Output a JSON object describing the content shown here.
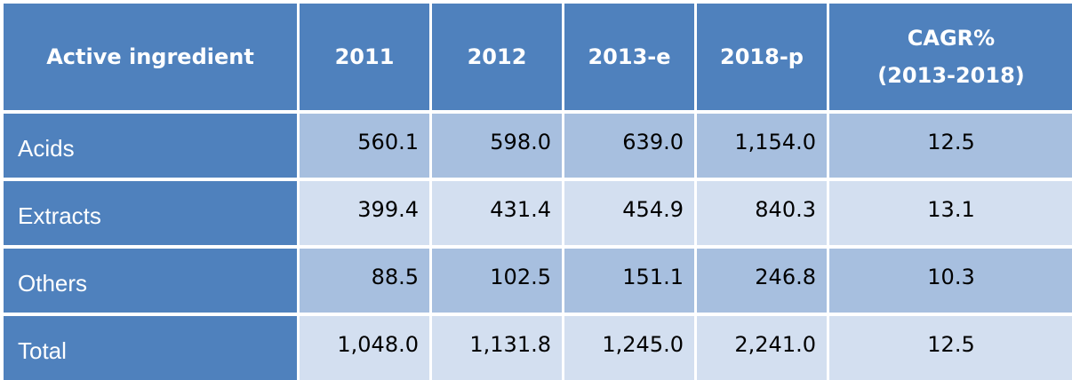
{
  "chart_data": {
    "type": "table",
    "columns": [
      "Active ingredient",
      "2011",
      "2012",
      "2013-e",
      "2018-p",
      [
        "CAGR%",
        "(2013-2018)"
      ]
    ],
    "rows": [
      {
        "label": "Acids",
        "values": [
          "560.1",
          "598.0",
          "639.0",
          "1,154.0",
          "12.5"
        ]
      },
      {
        "label": "Extracts",
        "values": [
          "399.4",
          "431.4",
          "454.9",
          "840.3",
          "13.1"
        ]
      },
      {
        "label": "Others",
        "values": [
          "88.5",
          "102.5",
          "151.1",
          "246.8",
          "10.3"
        ]
      },
      {
        "label": "Total",
        "values": [
          "1,048.0",
          "1,131.8",
          "1,245.0",
          "2,241.0",
          "12.5"
        ]
      }
    ]
  },
  "colors": {
    "header": "#4f81bd",
    "row_dark": "#a7bfdf",
    "row_light": "#d3dff0"
  }
}
